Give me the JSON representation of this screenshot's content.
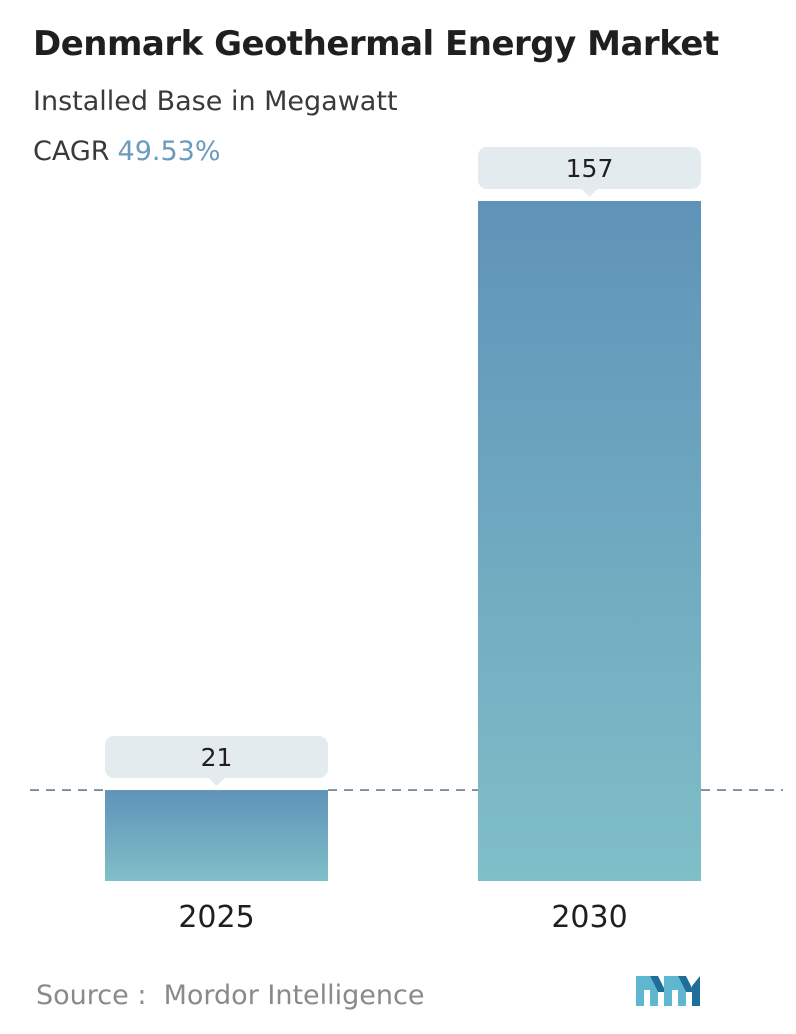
{
  "header": {
    "title": "Denmark Geothermal Energy Market",
    "subtitle": "Installed Base in Megawatt",
    "cagr_label": "CAGR",
    "cagr_value": "49.53%"
  },
  "footer": {
    "source_label": "Source :",
    "source_name": "Mordor Intelligence"
  },
  "colors": {
    "bar_top": "#5f93b8",
    "bar_bottom": "#7fbfc8",
    "label_box": "#e4ebee",
    "dashed_line": "#5d7f96",
    "cagr_value": "#6a9bbd",
    "logo_light": "#5fb7cf",
    "logo_dark": "#1f6e9a"
  },
  "chart_data": {
    "type": "bar",
    "categories": [
      "2025",
      "2030"
    ],
    "values": [
      21,
      157
    ],
    "value_labels": [
      "21",
      "157"
    ],
    "title": "Denmark Geothermal Energy Market",
    "subtitle": "Installed Base in Megawatt",
    "xlabel": "",
    "ylabel": "",
    "ylim": [
      0,
      157
    ],
    "grid": false,
    "reference_line": "dashed at 2025 value"
  }
}
